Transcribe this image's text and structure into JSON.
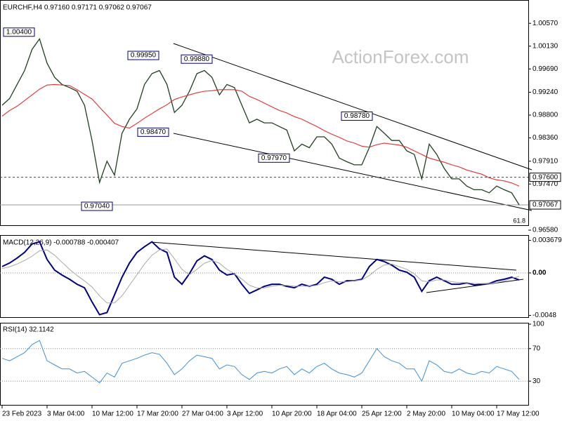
{
  "chart_data": [
    {
      "type": "line",
      "title": "EURCHF,H4 0.97160 0.97171 0.97062 0.97067",
      "watermark": "ActionForex.com",
      "fib_label": "61.8",
      "categories": [
        "23 Feb 2023",
        null,
        null,
        null,
        null,
        null,
        "3 Mar 04:00",
        null,
        null,
        null,
        null,
        null,
        "10 Mar 12:00",
        null,
        null,
        null,
        null,
        null,
        "17 Mar 20:00",
        null,
        null,
        null,
        null,
        null,
        "27 Mar 04:00",
        null,
        null,
        null,
        null,
        null,
        "3 Apr 12:00",
        null,
        null,
        null,
        null,
        null,
        "10 Apr 20:00",
        null,
        null,
        null,
        null,
        null,
        "18 Apr 04:00",
        null,
        null,
        null,
        null,
        null,
        "25 Apr 12:00",
        null,
        null,
        null,
        null,
        null,
        "2 May 20:00",
        null,
        null,
        null,
        null,
        null,
        "10 May 04:00",
        null,
        null,
        null,
        null,
        null,
        "17 May 12:00",
        null,
        null,
        null
      ],
      "series": [
        {
          "color": "#1f3f1f",
          "values": [
            0.9899,
            0.9912,
            0.9939,
            0.9966,
            1.0007,
            1.0027,
            0.998,
            0.9953,
            0.9939,
            0.9933,
            0.9926,
            0.9899,
            0.9831,
            0.975,
            0.9791,
            0.9764,
            0.9845,
            0.9872,
            0.9892,
            0.9939,
            0.996,
            0.9966,
            0.9939,
            0.9885,
            0.9899,
            0.9926,
            0.996,
            0.9966,
            0.9953,
            0.9919,
            0.9939,
            0.9933,
            0.9899,
            0.9865,
            0.9872,
            0.9865,
            0.9865,
            0.9858,
            0.9851,
            0.9811,
            0.9824,
            0.9817,
            0.9838,
            0.9838,
            0.9824,
            0.9797,
            0.979,
            0.9784,
            0.9784,
            0.9817,
            0.9858,
            0.9845,
            0.9831,
            0.9831,
            0.9811,
            0.9804,
            0.9757,
            0.9824,
            0.9804,
            0.9777,
            0.9757,
            0.9757,
            0.9743,
            0.9736,
            0.9736,
            0.973,
            0.9743,
            0.9736,
            0.973,
            0.97067
          ]
        },
        {
          "color": "#e03030",
          "values": [
            0.9878,
            0.9889,
            0.9897,
            0.9908,
            0.9919,
            0.993,
            0.9938,
            0.9939,
            0.9938,
            0.9937,
            0.9929,
            0.992,
            0.9911,
            0.9895,
            0.988,
            0.9864,
            0.9858,
            0.9855,
            0.9864,
            0.9874,
            0.9883,
            0.9892,
            0.99,
            0.991,
            0.9915,
            0.9919,
            0.9923,
            0.9926,
            0.9927,
            0.9929,
            0.9929,
            0.9929,
            0.9926,
            0.9916,
            0.991,
            0.9903,
            0.9896,
            0.9889,
            0.9884,
            0.9877,
            0.9872,
            0.9865,
            0.9858,
            0.985,
            0.9843,
            0.9837,
            0.983,
            0.9826,
            0.982,
            0.9818,
            0.9823,
            0.9826,
            0.9824,
            0.9822,
            0.9818,
            0.9811,
            0.9804,
            0.9797,
            0.9793,
            0.9789,
            0.9784,
            0.978,
            0.9774,
            0.977,
            0.9766,
            0.9759,
            0.9755,
            0.9753,
            0.9749,
            0.9743
          ]
        }
      ],
      "ylim": [
        0.9658,
        1.0102
      ],
      "yticks": [
        {
          "value": 1.0057,
          "label": "1.00570"
        },
        {
          "value": 1.0013,
          "label": "1.00130"
        },
        {
          "value": 0.9969,
          "label": "0.99690"
        },
        {
          "value": 0.9924,
          "label": "0.99240"
        },
        {
          "value": 0.988,
          "label": "0.98800"
        },
        {
          "value": 0.9836,
          "label": "0.98360"
        },
        {
          "value": 0.9791,
          "label": "0.97910"
        },
        {
          "value": 0.9747,
          "label": "0.97470"
        },
        {
          "value": 0.9658,
          "label": "0.96580"
        }
      ],
      "annotations": [
        {
          "value": 1.004,
          "label": "1.00400"
        },
        {
          "value": 0.9995,
          "label": "0.99950"
        },
        {
          "value": 0.9988,
          "label": "0.99880"
        },
        {
          "value": 0.9847,
          "label": "0.98470"
        },
        {
          "value": 0.9704,
          "label": "0.97040"
        },
        {
          "value": 0.9797,
          "label": "0.97970"
        },
        {
          "value": 0.9878,
          "label": "0.98780"
        }
      ],
      "levels": [
        {
          "value": 0.976,
          "label": "0.97600",
          "style": "dashed"
        },
        {
          "value": 0.97067,
          "label": "0.97067",
          "style": "solid"
        }
      ]
    },
    {
      "type": "line",
      "title": "MACD(12,26,9) -0.000788 -0.000407",
      "series": [
        {
          "color": "#000080",
          "values": [
            0.00072,
            0.00112,
            0.00168,
            0.00232,
            0.00328,
            0.00352,
            0.00152,
            0.00032,
            -0.00024,
            -0.00072,
            -0.00128,
            -0.00168,
            -0.00328,
            -0.00472,
            -0.00448,
            -0.00248,
            -0.00048,
            0.00112,
            0.00232,
            0.00296,
            0.00352,
            0.00272,
            0.00232,
            -0.00048,
            -0.00128,
            -8e-05,
            0.00136,
            0.00192,
            0.00152,
            0.00032,
            -0.00024,
            -8e-05,
            -0.00128,
            -0.00232,
            -0.00192,
            -0.00152,
            -0.00128,
            -0.00128,
            -0.00152,
            -0.00168,
            -0.00128,
            -0.00152,
            -0.00128,
            -0.00048,
            -0.00072,
            -0.00128,
            -0.00088,
            -0.00088,
            -0.00072,
            0.00072,
            0.00152,
            0.00128,
            0.00088,
            0.00032,
            8e-05,
            -0.00048,
            -0.00208,
            -0.00088,
            -0.00048,
            -0.00088,
            -0.00128,
            -0.00128,
            -0.00112,
            -0.00136,
            -0.00128,
            -0.0012,
            -0.00088,
            -0.00072,
            -0.00048,
            -0.000788
          ]
        },
        {
          "color": "#a8a8a8",
          "values": [
            0.0005,
            0.0007,
            0.001,
            0.0014,
            0.0019,
            0.0025,
            0.0026,
            0.002,
            0.0012,
            0.0004,
            -0.0003,
            -0.0009,
            -0.0016,
            -0.0026,
            -0.0034,
            -0.0034,
            -0.0026,
            -0.0014,
            -0.0002,
            0.001,
            0.002,
            0.0026,
            0.0027,
            0.0016,
            0.0004,
            -0.0002,
            0.0004,
            0.0011,
            0.0014,
            0.0011,
            0.0004,
            -0.0001,
            -0.0007,
            -0.0014,
            -0.0017,
            -0.0017,
            -0.0015,
            -0.0014,
            -0.0014,
            -0.0015,
            -0.0015,
            -0.0015,
            -0.0014,
            -0.0011,
            -0.0009,
            -0.001,
            -0.001,
            -0.0009,
            -0.0008,
            -0.0003,
            0.0004,
            0.0009,
            0.001,
            0.0007,
            0.0004,
            -0.0001,
            -0.0009,
            -0.001,
            -0.0008,
            -0.0008,
            -0.001,
            -0.0011,
            -0.0011,
            -0.0012,
            -0.0012,
            -0.0012,
            -0.0011,
            -0.0009,
            -0.0006,
            -0.000407
          ]
        }
      ],
      "ylim": [
        -0.005,
        0.0042
      ],
      "yticks": [
        0.003679,
        {
          "value": 0,
          "label": "0.00"
        },
        -0.0048
      ],
      "levels": [
        0
      ]
    },
    {
      "type": "line",
      "title": "RSI(14) 32.1142",
      "series": [
        {
          "color": "#3d8fd6",
          "values": [
            58,
            55,
            60,
            65,
            75,
            80,
            55,
            50,
            45,
            45,
            40,
            42,
            35,
            28,
            40,
            35,
            52,
            55,
            58,
            62,
            65,
            63,
            52,
            38,
            45,
            55,
            62,
            60,
            58,
            45,
            50,
            48,
            38,
            32,
            40,
            42,
            40,
            45,
            48,
            38,
            45,
            40,
            48,
            52,
            45,
            40,
            38,
            35,
            40,
            55,
            70,
            60,
            55,
            52,
            45,
            45,
            30,
            55,
            50,
            42,
            40,
            45,
            40,
            38,
            42,
            40,
            48,
            45,
            42,
            32.1142
          ]
        }
      ],
      "ylim": [
        0,
        100
      ],
      "yticks": [
        100,
        70,
        30
      ],
      "levels": [
        70,
        30
      ]
    }
  ]
}
